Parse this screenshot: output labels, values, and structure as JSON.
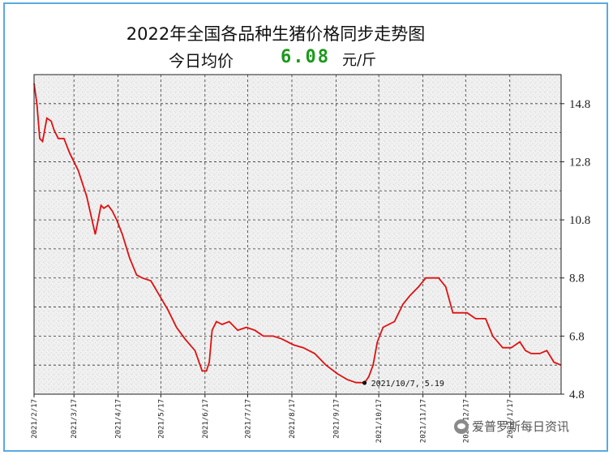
{
  "chart_data": {
    "type": "line",
    "title": "2022年全国各品种生猪价格同步走势图",
    "subtitle_label": "今日均价",
    "subtitle_value": "6.08",
    "subtitle_unit": "元/斤",
    "x_tick_labels": [
      "2021/2/17",
      "2021/3/17",
      "2021/4/17",
      "2021/5/17",
      "2021/6/17",
      "2021/7/17",
      "2021/8/17",
      "2021/9/17",
      "2021/10/17",
      "2021/11/17",
      "2021/12/17",
      "2022/1/17"
    ],
    "y_tick_labels": [
      "14.8",
      "12.8",
      "10.8",
      "8.8",
      "6.8",
      "4.8"
    ],
    "ylim": [
      4.8,
      15.8
    ],
    "xlim": [
      "2021/2/17",
      "2022/2/22"
    ],
    "grid": true,
    "grid_style": "dashed",
    "line_color": "#e01010",
    "annotation": {
      "text": "2021/10/7, 5.19",
      "x": "2021/10/7",
      "y": 5.19
    },
    "series": [
      {
        "x": [
          "2021/2/17",
          "2021/2/19",
          "2021/2/21",
          "2021/2/23",
          "2021/2/26",
          "2021/3/1",
          "2021/3/3",
          "2021/3/6",
          "2021/3/10",
          "2021/3/14",
          "2021/3/20",
          "2021/3/26",
          "2021/4/1",
          "2021/4/5",
          "2021/4/7",
          "2021/4/10",
          "2021/4/13",
          "2021/4/16",
          "2021/4/20",
          "2021/4/25",
          "2021/4/30",
          "2021/5/4",
          "2021/5/10",
          "2021/5/16",
          "2021/5/22",
          "2021/5/28",
          "2021/6/3",
          "2021/6/10",
          "2021/6/15",
          "2021/6/18",
          "2021/6/20",
          "2021/6/22",
          "2021/6/25",
          "2021/6/29",
          "2021/7/4",
          "2021/7/10",
          "2021/7/16",
          "2021/7/22",
          "2021/7/28",
          "2021/8/4",
          "2021/8/10",
          "2021/8/18",
          "2021/8/25",
          "2021/9/2",
          "2021/9/10",
          "2021/9/18",
          "2021/9/25",
          "2021/10/1",
          "2021/10/4",
          "2021/10/7",
          "2021/10/10",
          "2021/10/13",
          "2021/10/16",
          "2021/10/20",
          "2021/10/24",
          "2021/10/28",
          "2021/11/3",
          "2021/11/8",
          "2021/11/14",
          "2021/11/19",
          "2021/11/24",
          "2021/11/28",
          "2021/12/3",
          "2021/12/8",
          "2021/12/13",
          "2021/12/18",
          "2021/12/24",
          "2021/12/31",
          "2022/1/5",
          "2022/1/12",
          "2022/1/18",
          "2022/1/24",
          "2022/1/28",
          "2022/2/1",
          "2022/2/7",
          "2022/2/12",
          "2022/2/17",
          "2022/2/22"
        ],
        "values": [
          15.5,
          14.8,
          13.6,
          13.5,
          14.3,
          14.2,
          13.9,
          13.6,
          13.6,
          13.1,
          12.5,
          11.6,
          10.3,
          11.3,
          11.2,
          11.3,
          11.1,
          10.8,
          10.3,
          9.5,
          8.9,
          8.8,
          8.7,
          8.2,
          7.7,
          7.1,
          6.7,
          6.3,
          5.6,
          5.6,
          5.9,
          7.0,
          7.3,
          7.2,
          7.3,
          7.0,
          7.1,
          7.0,
          6.8,
          6.8,
          6.7,
          6.5,
          6.4,
          6.2,
          5.8,
          5.5,
          5.3,
          5.2,
          5.2,
          5.19,
          5.4,
          5.8,
          6.6,
          7.1,
          7.2,
          7.3,
          7.9,
          8.2,
          8.5,
          8.8,
          8.8,
          8.8,
          8.5,
          7.6,
          7.6,
          7.6,
          7.4,
          7.4,
          6.8,
          6.4,
          6.4,
          6.6,
          6.3,
          6.2,
          6.2,
          6.3,
          5.9,
          5.8
        ]
      }
    ]
  },
  "watermark": {
    "text": "爱普罗斯每日资讯",
    "icon": "wechat-icon"
  }
}
